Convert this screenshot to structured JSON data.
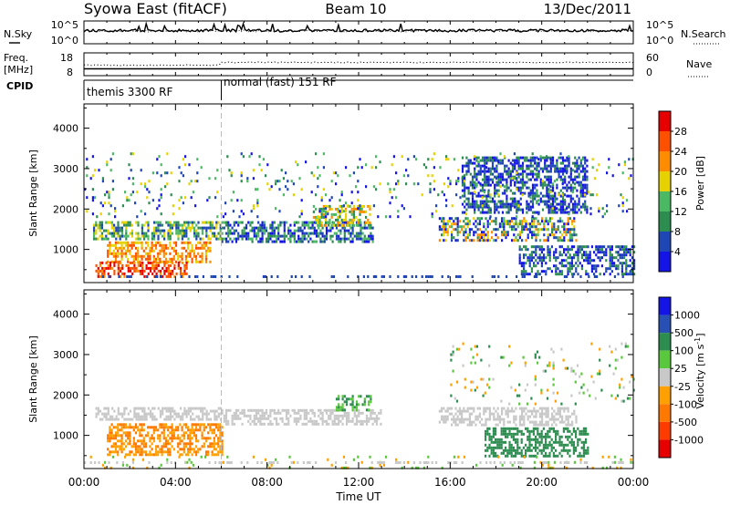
{
  "header": {
    "title": "Syowa East (fitACF)",
    "beam": "Beam 10",
    "date": "13/Dec/2011"
  },
  "noise_panel": {
    "left_label": "N.Sky",
    "right_label": "N.Search",
    "left_ticks": [
      "10^5",
      "10^0"
    ],
    "right_ticks": [
      "10^5",
      "10^0"
    ]
  },
  "freq_panel": {
    "left_label_line1": "Freq.",
    "left_label_line2": "[MHz]",
    "right_label": "Nave",
    "left_ticks": [
      "18",
      "8"
    ],
    "right_ticks": [
      "60",
      "0"
    ]
  },
  "cpid_panel": {
    "label": "CPID",
    "segments": [
      {
        "name": "themis 3300 RF",
        "start_hour": 0
      },
      {
        "name": "normal (fast) 151 RF",
        "start_hour": 6
      }
    ]
  },
  "chart_data": [
    {
      "type": "heatmap",
      "name": "power",
      "ylabel": "Slant Range [km]",
      "ylim": [
        180,
        4600
      ],
      "yticks": [
        1000,
        2000,
        3000,
        4000
      ],
      "xlim_hours": [
        0,
        24
      ],
      "colorbar": {
        "label": "Power [dB]",
        "ticks": [
          "4",
          "8",
          "12",
          "16",
          "20",
          "24",
          "28"
        ],
        "colors": [
          "#1414e6",
          "#1e46b4",
          "#2d8c50",
          "#4bb964",
          "#e6d200",
          "#ff8c00",
          "#ff5000",
          "#e60000"
        ]
      },
      "regions": [
        {
          "x": [
            0.4,
            6.0
          ],
          "y": [
            1250,
            1700
          ],
          "levels": [
            1,
            2,
            3,
            4
          ]
        },
        {
          "x": [
            1.0,
            5.5
          ],
          "y": [
            700,
            1200
          ],
          "levels": [
            4,
            5,
            6
          ]
        },
        {
          "x": [
            0.5,
            4.5
          ],
          "y": [
            300,
            700
          ],
          "levels": [
            5,
            6,
            7
          ]
        },
        {
          "x": [
            6.0,
            12.6
          ],
          "y": [
            1200,
            1700
          ],
          "levels": [
            0,
            1,
            2,
            3
          ]
        },
        {
          "x": [
            10.0,
            12.5
          ],
          "y": [
            1600,
            2100
          ],
          "levels": [
            2,
            3,
            4,
            5
          ]
        },
        {
          "x": [
            15.5,
            21.5
          ],
          "y": [
            1200,
            1800
          ],
          "levels": [
            0,
            1,
            2,
            3,
            4,
            5
          ]
        },
        {
          "x": [
            16.5,
            22.0
          ],
          "y": [
            1900,
            3300
          ],
          "levels": [
            0,
            1,
            2
          ]
        },
        {
          "x": [
            19.0,
            24.0
          ],
          "y": [
            400,
            1100
          ],
          "levels": [
            0,
            1,
            2
          ]
        },
        {
          "x": [
            0.0,
            24.0
          ],
          "y": [
            1800,
            3400
          ],
          "levels": [
            0,
            1,
            2,
            3,
            4
          ]
        }
      ]
    },
    {
      "type": "heatmap",
      "name": "velocity",
      "ylabel": "Slant Range [km]",
      "xlabel": "Time UT",
      "ylim": [
        180,
        4600
      ],
      "yticks": [
        1000,
        2000,
        3000,
        4000
      ],
      "xlim_hours": [
        0,
        24
      ],
      "xtick_labels": [
        "00:00",
        "04:00",
        "08:00",
        "12:00",
        "16:00",
        "20:00",
        "00:00"
      ],
      "colorbar": {
        "label": "Velocity [m s^-1]",
        "ticks": [
          "1000",
          "500",
          "100",
          "25",
          "-25",
          "-100",
          "-500",
          "-1000"
        ],
        "colors": [
          "#1414e6",
          "#2850b4",
          "#2d8c50",
          "#5ac83c",
          "#c8c8c8",
          "#ffa000",
          "#ff7800",
          "#ff3c00",
          "#e60000"
        ]
      },
      "regions": [
        {
          "x": [
            0.5,
            6.0
          ],
          "y": [
            1400,
            1700
          ],
          "levels": [
            4
          ]
        },
        {
          "x": [
            1.0,
            6.0
          ],
          "y": [
            500,
            1300
          ],
          "levels": [
            5,
            6
          ]
        },
        {
          "x": [
            6.0,
            13.0
          ],
          "y": [
            1300,
            1650
          ],
          "levels": [
            4
          ]
        },
        {
          "x": [
            11.0,
            12.5
          ],
          "y": [
            1650,
            2000
          ],
          "levels": [
            2,
            3
          ]
        },
        {
          "x": [
            15.5,
            21.5
          ],
          "y": [
            1250,
            1700
          ],
          "levels": [
            4
          ]
        },
        {
          "x": [
            17.5,
            22.0
          ],
          "y": [
            500,
            1200
          ],
          "levels": [
            2
          ]
        },
        {
          "x": [
            16.0,
            24.0
          ],
          "y": [
            1800,
            3300
          ],
          "levels": [
            2,
            3,
            4,
            5
          ]
        },
        {
          "x": [
            0.0,
            24.0
          ],
          "y": [
            200,
            500
          ],
          "levels": [
            3,
            5
          ]
        }
      ]
    }
  ]
}
